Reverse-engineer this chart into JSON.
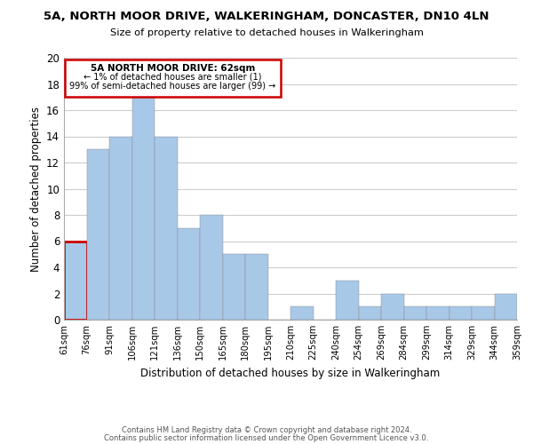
{
  "title": "5A, NORTH MOOR DRIVE, WALKERINGHAM, DONCASTER, DN10 4LN",
  "subtitle": "Size of property relative to detached houses in Walkeringham",
  "xlabel": "Distribution of detached houses by size in Walkeringham",
  "ylabel": "Number of detached properties",
  "bar_color": "#a8c8e8",
  "highlight_color": "#cc0000",
  "bin_labels": [
    "61sqm",
    "76sqm",
    "91sqm",
    "106sqm",
    "121sqm",
    "136sqm",
    "150sqm",
    "165sqm",
    "180sqm",
    "195sqm",
    "210sqm",
    "225sqm",
    "240sqm",
    "254sqm",
    "269sqm",
    "284sqm",
    "299sqm",
    "314sqm",
    "329sqm",
    "344sqm",
    "359sqm"
  ],
  "bar_heights": [
    6,
    13,
    14,
    17,
    14,
    7,
    8,
    5,
    5,
    0,
    1,
    0,
    3,
    1,
    2,
    1,
    1,
    1,
    1,
    2
  ],
  "highlight_bar_index": 0,
  "annotation_title": "5A NORTH MOOR DRIVE: 62sqm",
  "annotation_line1": "← 1% of detached houses are smaller (1)",
  "annotation_line2": "99% of semi-detached houses are larger (99) →",
  "ylim": [
    0,
    20
  ],
  "yticks": [
    0,
    2,
    4,
    6,
    8,
    10,
    12,
    14,
    16,
    18,
    20
  ],
  "footer1": "Contains HM Land Registry data © Crown copyright and database right 2024.",
  "footer2": "Contains public sector information licensed under the Open Government Licence v3.0."
}
